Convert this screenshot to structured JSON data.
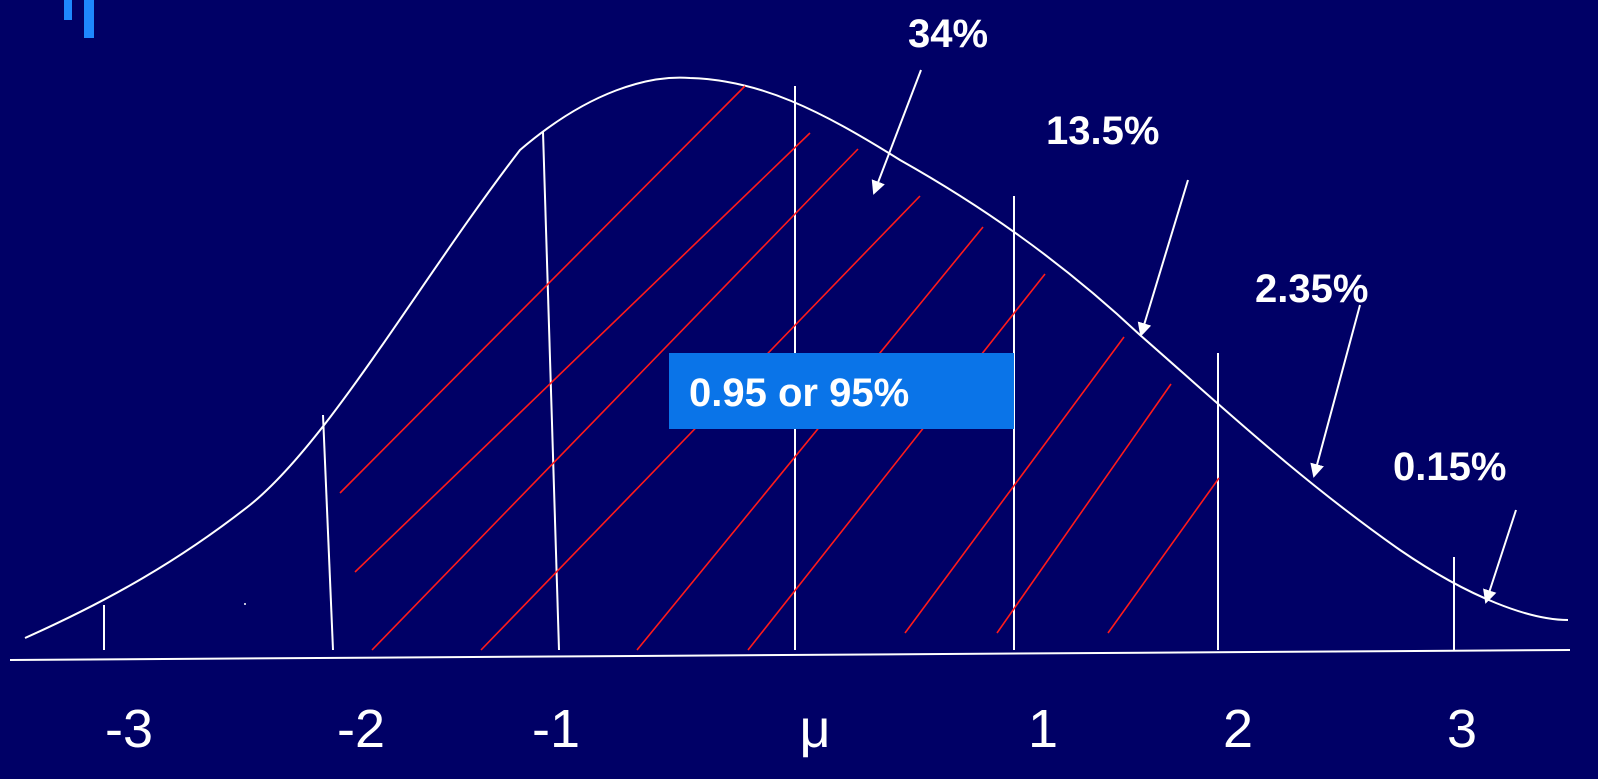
{
  "percentages": {
    "p34": "34%",
    "p13_5": "13.5%",
    "p2_35": "2.35%",
    "p0_15": "0.15%"
  },
  "callout": {
    "text": "0.95 or 95%"
  },
  "axis_labels": [
    "-3",
    "-2",
    "-1",
    "μ",
    "1",
    "2",
    "3"
  ],
  "colors": {
    "background": "#000066",
    "curve": "#ffffff",
    "hatch": "#ff1a1a",
    "callout_fill": "#0a74e8",
    "bullet": "#1e88ff"
  }
}
